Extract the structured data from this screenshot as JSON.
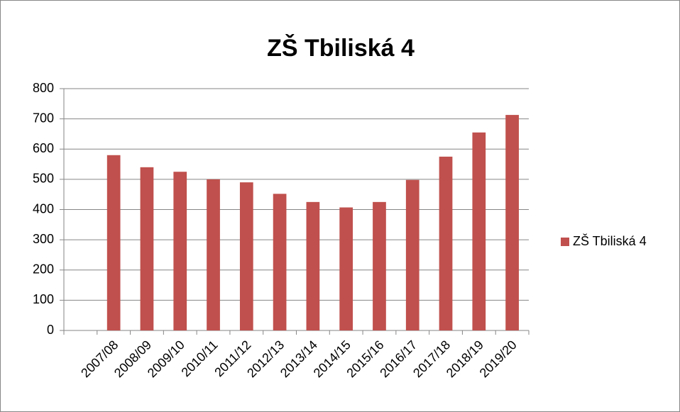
{
  "chart_data": {
    "type": "bar",
    "title": "ZŠ Tbiliská 4",
    "categories": [
      null,
      "2007/08",
      "2008/09",
      "2009/10",
      "2010/11",
      "2011/12",
      "2012/13",
      "2013/14",
      "2014/15",
      "2015/16",
      "2016/17",
      "2017/18",
      "2018/19",
      "2019/20"
    ],
    "series": [
      {
        "name": "ZŠ Tbiliská 4",
        "color": "#c0504d",
        "values": [
          null,
          580,
          540,
          525,
          500,
          490,
          452,
          425,
          407,
          425,
          498,
          575,
          655,
          713
        ]
      }
    ],
    "ylim": [
      0,
      800
    ],
    "yticks": [
      0,
      100,
      200,
      300,
      400,
      500,
      600,
      700,
      800
    ],
    "grid": true,
    "legend": "right"
  }
}
